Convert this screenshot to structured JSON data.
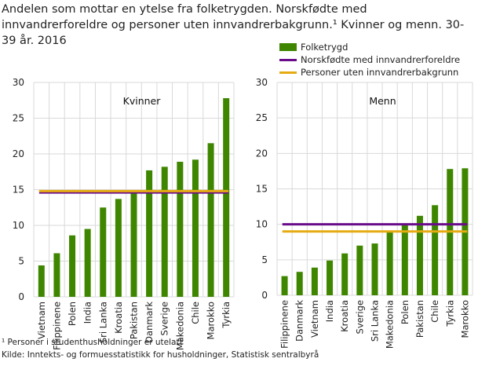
{
  "title": "Andelen som mottar en ytelse fra folketrygden. Norskfødte med innvandrerforeldre og personer uten innvandrerbakgrunn.¹ Kvinner og menn. 30-39 år. 2016",
  "footnote": "¹ Personer i studenthusholdninger  er utelatt",
  "source": "Kilde: Inntekts- og formuesstatistikk for husholdninger,  Statistisk sentralbyrå",
  "legend": [
    {
      "label": "Folketrygd",
      "color": "#3f8600",
      "kind": "bar"
    },
    {
      "label": "Norskfødte med innvandrerforeldre",
      "color": "#6a0c8a",
      "kind": "line"
    },
    {
      "label": "Personer uten innvandrerbakgrunn",
      "color": "#e6ab12",
      "kind": "line"
    }
  ],
  "chart_data": [
    {
      "type": "bar",
      "title": "Kvinner",
      "ylim": [
        0,
        30
      ],
      "yticks": [
        0,
        5,
        10,
        15,
        20,
        25,
        30
      ],
      "grid": true,
      "categories": [
        "Vietnam",
        "Filippinene",
        "Polen",
        "India",
        "Sri Lanka",
        "Kroatia",
        "Pakistan",
        "Danmark",
        "Sverige",
        "Makedonia",
        "Chile",
        "Marokko",
        "Tyrkia"
      ],
      "series": [
        {
          "name": "Folketrygd",
          "values": [
            4.4,
            6.1,
            8.6,
            9.5,
            12.5,
            13.7,
            14.6,
            17.7,
            18.2,
            18.9,
            19.2,
            21.5,
            27.8
          ]
        }
      ],
      "reference_lines": [
        {
          "name": "Norskfødte med innvandrerforeldre",
          "value": 14.6
        },
        {
          "name": "Personer uten innvandrerbakgrunn",
          "value": 14.8
        }
      ]
    },
    {
      "type": "bar",
      "title": "Menn",
      "ylim": [
        0,
        30
      ],
      "yticks": [
        0,
        5,
        10,
        15,
        20,
        25,
        30
      ],
      "grid": true,
      "categories": [
        "Filippinene",
        "Danmark",
        "Vietnam",
        "India",
        "Kroatia",
        "Sverige",
        "Sri Lanka",
        "Makedonia",
        "Polen",
        "Pakistan",
        "Chile",
        "Tyrkia",
        "Marokko"
      ],
      "series": [
        {
          "name": "Folketrygd",
          "values": [
            2.7,
            3.3,
            3.9,
            4.9,
            5.9,
            7.0,
            7.3,
            9.0,
            10.0,
            11.2,
            12.7,
            17.8,
            17.9
          ]
        }
      ],
      "reference_lines": [
        {
          "name": "Norskfødte med innvandrerforeldre",
          "value": 10.0
        },
        {
          "name": "Personer uten innvandrerbakgrunn",
          "value": 9.0
        }
      ]
    }
  ]
}
